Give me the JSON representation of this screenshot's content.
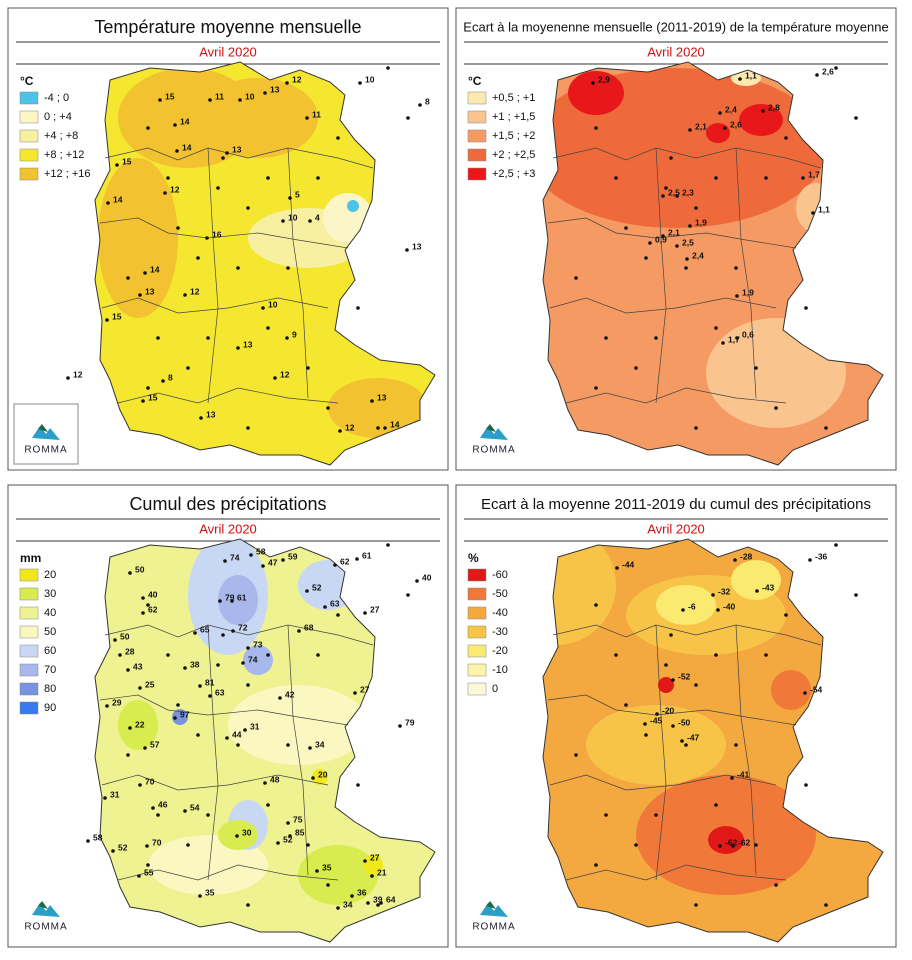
{
  "logo": "ROMMA",
  "panels": [
    {
      "title": "Température moyenne mensuelle",
      "subtitle": "Avril 2020",
      "legend": {
        "unit": "°C",
        "items": [
          {
            "label": "-4 ; 0",
            "color": "#4ec3e8"
          },
          {
            "label": "0 ; +4",
            "color": "#fbf5c8"
          },
          {
            "label": "+4 ; +8",
            "color": "#f7f0a0"
          },
          {
            "label": "+8 ; +12",
            "color": "#f5e630"
          },
          {
            "label": "+12 ; +16",
            "color": "#f2c230"
          }
        ]
      },
      "stations": [
        "15",
        "11",
        "10",
        "13",
        "12",
        "14",
        "13",
        "11",
        "14",
        "15",
        "12",
        "14",
        "16",
        "5",
        "10",
        "4",
        "14",
        "13",
        "15",
        "12",
        "10",
        "13",
        "9",
        "12",
        "15",
        "13",
        "12",
        "13",
        "14",
        "12",
        "13",
        "8",
        "10",
        "8"
      ]
    },
    {
      "title": "Ecart à la moyenenne mensuelle (2011-2019) de la température moyenne",
      "subtitle": "Avril 2020",
      "legend": {
        "unit": "°C",
        "items": [
          {
            "label": "+0,5 ; +1",
            "color": "#fde8b0"
          },
          {
            "label": "+1 ; +1,5",
            "color": "#f9c48e"
          },
          {
            "label": "+1,5 ; +2",
            "color": "#f59a62"
          },
          {
            "label": "+2 ; +2,5",
            "color": "#ef6a3a"
          },
          {
            "label": "+2,5 ; +3",
            "color": "#e8181a"
          }
        ]
      },
      "stations": [
        "2,9",
        "1,1",
        "2,6",
        "2,4",
        "2,8",
        "2,1",
        "2,6",
        "1,7",
        "2,5",
        "2,3",
        "1,9",
        "0,9",
        "2,1",
        "2,5",
        "2,4",
        "1,1",
        "1,9",
        "1,7",
        "0,6"
      ]
    },
    {
      "title": "Cumul des précipitations",
      "subtitle": "Avril 2020",
      "legend": {
        "unit": "mm",
        "items": [
          {
            "label": "20",
            "color": "#f0e81a"
          },
          {
            "label": "30",
            "color": "#d8ec50"
          },
          {
            "label": "40",
            "color": "#eef290"
          },
          {
            "label": "50",
            "color": "#fbf7c0"
          },
          {
            "label": "60",
            "color": "#c8d8f4"
          },
          {
            "label": "70",
            "color": "#a8b8ec"
          },
          {
            "label": "80",
            "color": "#7894e0"
          },
          {
            "label": "90",
            "color": "#3878f0"
          }
        ]
      },
      "stations": [
        "50",
        "74",
        "58",
        "47",
        "59",
        "61",
        "62",
        "40",
        "40",
        "62",
        "79",
        "61",
        "52",
        "63",
        "27",
        "50",
        "65",
        "72",
        "68",
        "73",
        "74",
        "28",
        "43",
        "38",
        "25",
        "81",
        "63",
        "42",
        "27",
        "29",
        "97",
        "22",
        "79",
        "57",
        "44",
        "31",
        "34",
        "70",
        "20",
        "48",
        "31",
        "46",
        "54",
        "75",
        "85",
        "52",
        "30",
        "58",
        "52",
        "70",
        "27",
        "21",
        "55",
        "35",
        "35",
        "36",
        "34",
        "39",
        "64"
      ]
    },
    {
      "title": "Ecart à la moyenne 2011-2019 du cumul des précipitations",
      "subtitle": "Avril 2020",
      "legend": {
        "unit": "%",
        "items": [
          {
            "label": "-60",
            "color": "#e01818"
          },
          {
            "label": "-50",
            "color": "#f07838"
          },
          {
            "label": "-40",
            "color": "#f4a840"
          },
          {
            "label": "-30",
            "color": "#f7c448"
          },
          {
            "label": "-20",
            "color": "#faea70"
          },
          {
            "label": "-10",
            "color": "#fcf4a8"
          },
          {
            "label": "0",
            "color": "#fdf8d8"
          }
        ]
      },
      "stations": [
        "-44",
        "-28",
        "-36",
        "-32",
        "-43",
        "-6",
        "-40",
        "-54",
        "-52",
        "-20",
        "-45",
        "-50",
        "-47",
        "-41",
        "-62",
        "-62"
      ]
    }
  ]
}
